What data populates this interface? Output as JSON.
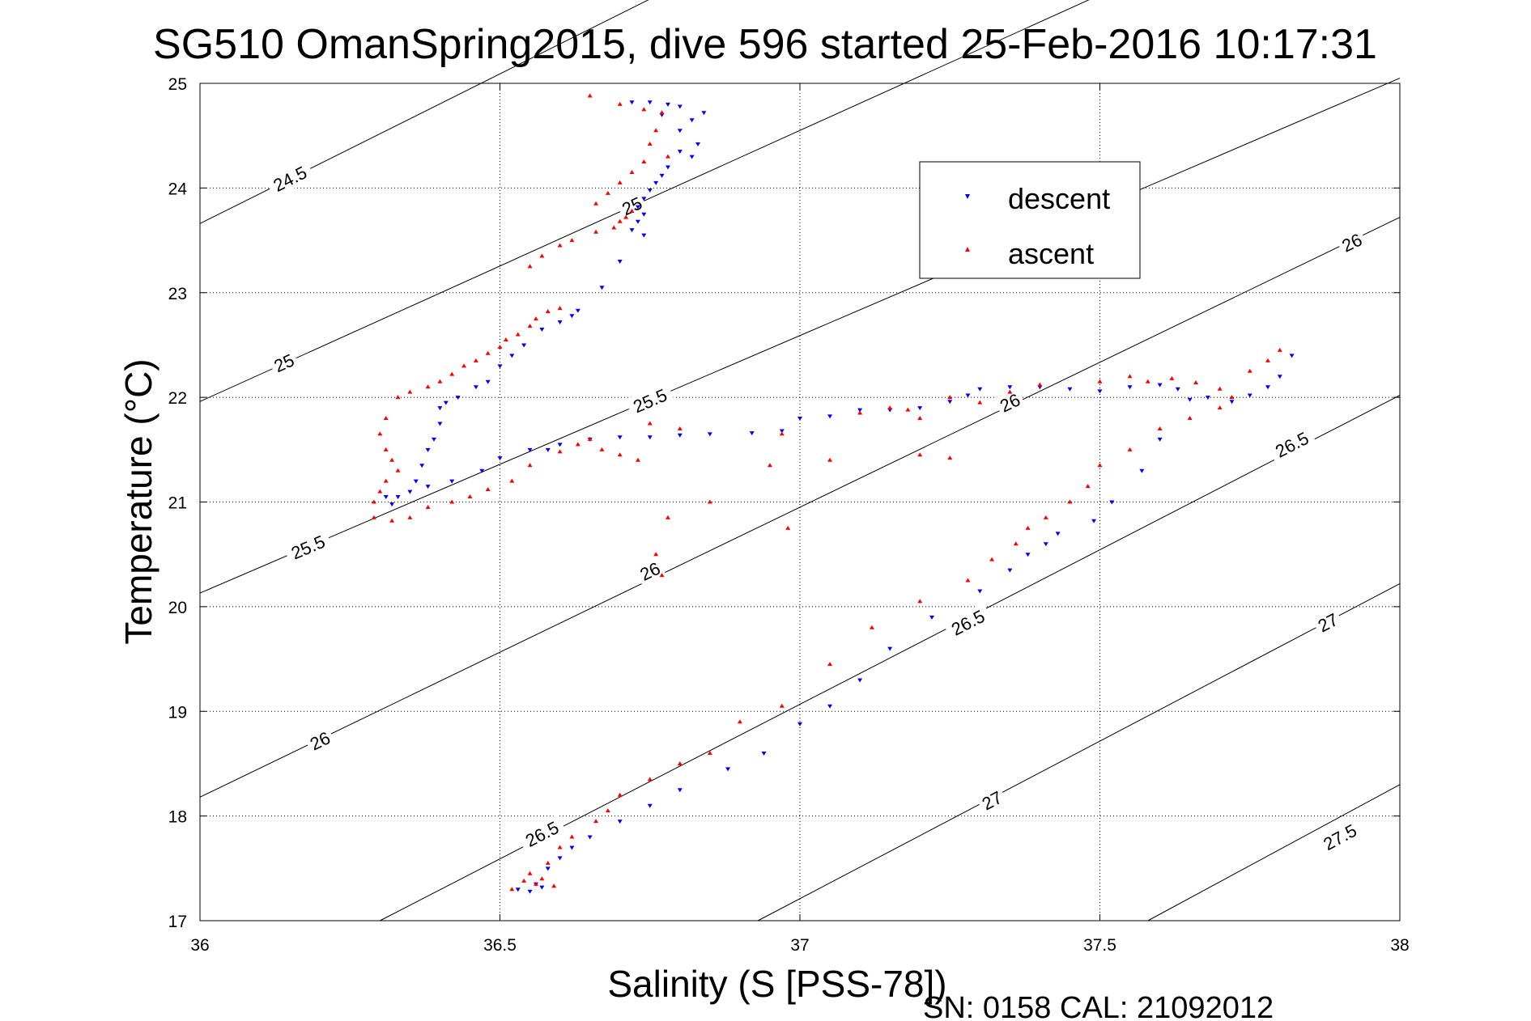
{
  "chart_data": {
    "type": "scatter",
    "title": "SG510 OmanSpring2015, dive 596 started 25-Feb-2016 10:17:31",
    "xlabel": "Salinity (S [PSS-78])",
    "ylabel": "Temperature (°C)",
    "xlim": [
      36,
      38
    ],
    "ylim": [
      17,
      25
    ],
    "xticks": [
      "36",
      "36.5",
      "37",
      "37.5",
      "38"
    ],
    "yticks": [
      "17",
      "18",
      "19",
      "20",
      "21",
      "22",
      "23",
      "24",
      "25"
    ],
    "grid": true,
    "legend_position": "top-right",
    "footer": "SN: 0158  CAL: 21092012",
    "colors": {
      "descent": "#0000ff",
      "ascent": "#ff0000"
    },
    "series": [
      {
        "name": "descent",
        "marker": "triangle-down",
        "points": [
          [
            36.72,
            24.82
          ],
          [
            36.75,
            24.82
          ],
          [
            36.78,
            24.8
          ],
          [
            36.8,
            24.78
          ],
          [
            36.84,
            24.72
          ],
          [
            36.77,
            24.7
          ],
          [
            36.82,
            24.65
          ],
          [
            36.8,
            24.55
          ],
          [
            36.83,
            24.42
          ],
          [
            36.8,
            24.35
          ],
          [
            36.82,
            24.3
          ],
          [
            36.78,
            24.2
          ],
          [
            36.77,
            24.12
          ],
          [
            36.76,
            24.05
          ],
          [
            36.75,
            23.98
          ],
          [
            36.74,
            23.9
          ],
          [
            36.73,
            23.82
          ],
          [
            36.74,
            23.75
          ],
          [
            36.73,
            23.68
          ],
          [
            36.72,
            23.6
          ],
          [
            36.74,
            23.55
          ],
          [
            36.7,
            23.3
          ],
          [
            36.67,
            23.05
          ],
          [
            36.63,
            22.83
          ],
          [
            36.62,
            22.78
          ],
          [
            36.6,
            22.72
          ],
          [
            36.57,
            22.65
          ],
          [
            36.54,
            22.5
          ],
          [
            36.52,
            22.4
          ],
          [
            36.5,
            22.3
          ],
          [
            36.48,
            22.15
          ],
          [
            36.46,
            22.1
          ],
          [
            36.43,
            22.0
          ],
          [
            36.41,
            21.95
          ],
          [
            36.4,
            21.9
          ],
          [
            36.4,
            21.75
          ],
          [
            36.39,
            21.6
          ],
          [
            36.38,
            21.5
          ],
          [
            36.37,
            21.35
          ],
          [
            36.36,
            21.2
          ],
          [
            36.35,
            21.1
          ],
          [
            36.33,
            21.05
          ],
          [
            36.31,
            21.05
          ],
          [
            36.32,
            20.98
          ],
          [
            36.38,
            21.15
          ],
          [
            36.42,
            21.2
          ],
          [
            36.47,
            21.3
          ],
          [
            36.5,
            21.42
          ],
          [
            36.55,
            21.5
          ],
          [
            36.58,
            21.5
          ],
          [
            36.6,
            21.55
          ],
          [
            36.65,
            21.6
          ],
          [
            36.7,
            21.62
          ],
          [
            36.75,
            21.62
          ],
          [
            36.8,
            21.64
          ],
          [
            36.85,
            21.65
          ],
          [
            36.92,
            21.66
          ],
          [
            36.97,
            21.68
          ],
          [
            37.0,
            21.8
          ],
          [
            37.05,
            21.82
          ],
          [
            37.1,
            21.88
          ],
          [
            37.15,
            21.88
          ],
          [
            37.2,
            21.9
          ],
          [
            37.25,
            21.96
          ],
          [
            37.28,
            22.02
          ],
          [
            37.3,
            22.08
          ],
          [
            37.35,
            22.1
          ],
          [
            37.4,
            22.1
          ],
          [
            37.45,
            22.08
          ],
          [
            37.5,
            22.06
          ],
          [
            37.55,
            22.1
          ],
          [
            37.6,
            22.12
          ],
          [
            37.63,
            22.08
          ],
          [
            37.68,
            22.0
          ],
          [
            37.72,
            21.96
          ],
          [
            37.75,
            22.02
          ],
          [
            37.78,
            22.1
          ],
          [
            37.8,
            22.2
          ],
          [
            37.82,
            22.4
          ],
          [
            37.65,
            21.98
          ],
          [
            37.6,
            21.6
          ],
          [
            37.57,
            21.3
          ],
          [
            37.52,
            21.0
          ],
          [
            37.49,
            20.82
          ],
          [
            37.43,
            20.7
          ],
          [
            37.41,
            20.6
          ],
          [
            37.38,
            20.5
          ],
          [
            37.35,
            20.35
          ],
          [
            37.3,
            20.15
          ],
          [
            37.22,
            19.9
          ],
          [
            37.15,
            19.6
          ],
          [
            37.1,
            19.3
          ],
          [
            37.05,
            19.05
          ],
          [
            37.0,
            18.88
          ],
          [
            36.94,
            18.6
          ],
          [
            36.88,
            18.45
          ],
          [
            36.8,
            18.25
          ],
          [
            36.75,
            18.1
          ],
          [
            36.7,
            17.95
          ],
          [
            36.65,
            17.8
          ],
          [
            36.62,
            17.7
          ],
          [
            36.6,
            17.6
          ],
          [
            36.58,
            17.5
          ],
          [
            36.56,
            17.35
          ],
          [
            36.53,
            17.3
          ],
          [
            36.55,
            17.28
          ],
          [
            36.57,
            17.32
          ]
        ]
      },
      {
        "name": "ascent",
        "marker": "triangle-up",
        "points": [
          [
            36.65,
            24.88
          ],
          [
            36.7,
            24.8
          ],
          [
            36.74,
            24.75
          ],
          [
            36.77,
            24.72
          ],
          [
            36.76,
            24.55
          ],
          [
            36.75,
            24.42
          ],
          [
            36.78,
            24.3
          ],
          [
            36.74,
            24.25
          ],
          [
            36.72,
            24.15
          ],
          [
            36.7,
            24.05
          ],
          [
            36.68,
            23.95
          ],
          [
            36.66,
            23.85
          ],
          [
            36.72,
            23.78
          ],
          [
            36.71,
            23.72
          ],
          [
            36.7,
            23.68
          ],
          [
            36.69,
            23.62
          ],
          [
            36.66,
            23.58
          ],
          [
            36.62,
            23.5
          ],
          [
            36.6,
            23.45
          ],
          [
            36.57,
            23.35
          ],
          [
            36.55,
            23.25
          ],
          [
            36.6,
            22.85
          ],
          [
            36.58,
            22.82
          ],
          [
            36.56,
            22.75
          ],
          [
            36.55,
            22.68
          ],
          [
            36.53,
            22.6
          ],
          [
            36.51,
            22.55
          ],
          [
            36.5,
            22.48
          ],
          [
            36.48,
            22.42
          ],
          [
            36.46,
            22.35
          ],
          [
            36.44,
            22.3
          ],
          [
            36.42,
            22.22
          ],
          [
            36.4,
            22.15
          ],
          [
            36.38,
            22.1
          ],
          [
            36.35,
            22.05
          ],
          [
            36.33,
            22.0
          ],
          [
            36.31,
            21.8
          ],
          [
            36.3,
            21.65
          ],
          [
            36.31,
            21.5
          ],
          [
            36.32,
            21.4
          ],
          [
            36.33,
            21.3
          ],
          [
            36.31,
            21.2
          ],
          [
            36.3,
            21.1
          ],
          [
            36.29,
            21.0
          ],
          [
            36.29,
            20.85
          ],
          [
            36.32,
            20.82
          ],
          [
            36.35,
            20.85
          ],
          [
            36.38,
            20.95
          ],
          [
            36.42,
            21.0
          ],
          [
            36.45,
            21.05
          ],
          [
            36.48,
            21.12
          ],
          [
            36.52,
            21.2
          ],
          [
            36.55,
            21.35
          ],
          [
            36.6,
            21.48
          ],
          [
            36.63,
            21.55
          ],
          [
            36.65,
            21.6
          ],
          [
            36.67,
            21.5
          ],
          [
            36.7,
            21.45
          ],
          [
            36.73,
            21.4
          ],
          [
            36.75,
            21.75
          ],
          [
            36.8,
            21.7
          ],
          [
            36.97,
            21.65
          ],
          [
            36.95,
            21.35
          ],
          [
            36.85,
            21.0
          ],
          [
            36.78,
            20.85
          ],
          [
            36.76,
            20.5
          ],
          [
            36.77,
            20.3
          ],
          [
            36.98,
            20.75
          ],
          [
            37.05,
            21.4
          ],
          [
            37.1,
            21.85
          ],
          [
            37.15,
            21.9
          ],
          [
            37.18,
            21.88
          ],
          [
            37.2,
            21.8
          ],
          [
            37.25,
            22.0
          ],
          [
            37.2,
            21.45
          ],
          [
            37.25,
            21.42
          ],
          [
            37.3,
            21.95
          ],
          [
            37.35,
            22.05
          ],
          [
            37.4,
            22.12
          ],
          [
            37.5,
            22.15
          ],
          [
            37.55,
            22.2
          ],
          [
            37.58,
            22.15
          ],
          [
            37.62,
            22.18
          ],
          [
            37.66,
            22.14
          ],
          [
            37.7,
            22.08
          ],
          [
            37.72,
            22.0
          ],
          [
            37.75,
            22.25
          ],
          [
            37.78,
            22.35
          ],
          [
            37.8,
            22.45
          ],
          [
            37.7,
            21.9
          ],
          [
            37.65,
            21.8
          ],
          [
            37.6,
            21.7
          ],
          [
            37.55,
            21.5
          ],
          [
            37.5,
            21.35
          ],
          [
            37.48,
            21.15
          ],
          [
            37.45,
            21.0
          ],
          [
            37.41,
            20.85
          ],
          [
            37.38,
            20.75
          ],
          [
            37.36,
            20.6
          ],
          [
            37.32,
            20.45
          ],
          [
            37.28,
            20.25
          ],
          [
            37.2,
            20.05
          ],
          [
            37.12,
            19.8
          ],
          [
            37.05,
            19.45
          ],
          [
            36.97,
            19.05
          ],
          [
            36.9,
            18.9
          ],
          [
            36.85,
            18.6
          ],
          [
            36.8,
            18.5
          ],
          [
            36.75,
            18.35
          ],
          [
            36.7,
            18.2
          ],
          [
            36.68,
            18.05
          ],
          [
            36.66,
            17.95
          ],
          [
            36.62,
            17.8
          ],
          [
            36.6,
            17.7
          ],
          [
            36.58,
            17.55
          ],
          [
            36.55,
            17.45
          ],
          [
            36.54,
            17.38
          ],
          [
            36.52,
            17.3
          ],
          [
            36.56,
            17.35
          ],
          [
            36.59,
            17.33
          ],
          [
            36.57,
            17.4
          ]
        ]
      }
    ],
    "contours": [
      {
        "label": "24.5",
        "points": [
          [
            36.0,
            23.66
          ],
          [
            37.0,
            26.52
          ]
        ],
        "labels_at": [
          [
            36.15,
            24.09
          ]
        ]
      },
      {
        "label": "25",
        "points": [
          [
            36.0,
            21.96
          ],
          [
            38.0,
            27.14
          ]
        ],
        "labels_at": [
          [
            36.14,
            22.33
          ],
          [
            36.72,
            23.83
          ]
        ]
      },
      {
        "label": "25.5",
        "points": [
          [
            36.0,
            20.13
          ],
          [
            38.0,
            25.05
          ]
        ],
        "labels_at": [
          [
            36.18,
            20.57
          ],
          [
            36.75,
            21.97
          ]
        ]
      },
      {
        "label": "26",
        "points": [
          [
            36.0,
            18.18
          ],
          [
            38.0,
            23.72
          ]
        ],
        "labels_at": [
          [
            36.2,
            18.72
          ],
          [
            36.75,
            20.34
          ],
          [
            37.35,
            21.95
          ],
          [
            37.92,
            23.48
          ]
        ]
      },
      {
        "label": "26.5",
        "points": [
          [
            36.3,
            17.0
          ],
          [
            38.0,
            22.02
          ]
        ],
        "labels_at": [
          [
            36.57,
            17.83
          ],
          [
            37.28,
            19.85
          ],
          [
            37.82,
            21.55
          ]
        ]
      },
      {
        "label": "27",
        "points": [
          [
            36.93,
            17.0
          ],
          [
            38.0,
            20.22
          ]
        ],
        "labels_at": [
          [
            37.32,
            18.15
          ],
          [
            37.88,
            19.85
          ]
        ]
      },
      {
        "label": "27.5",
        "points": [
          [
            37.58,
            17.0
          ],
          [
            38.0,
            18.3
          ]
        ],
        "labels_at": [
          [
            37.9,
            17.8
          ]
        ]
      }
    ]
  }
}
